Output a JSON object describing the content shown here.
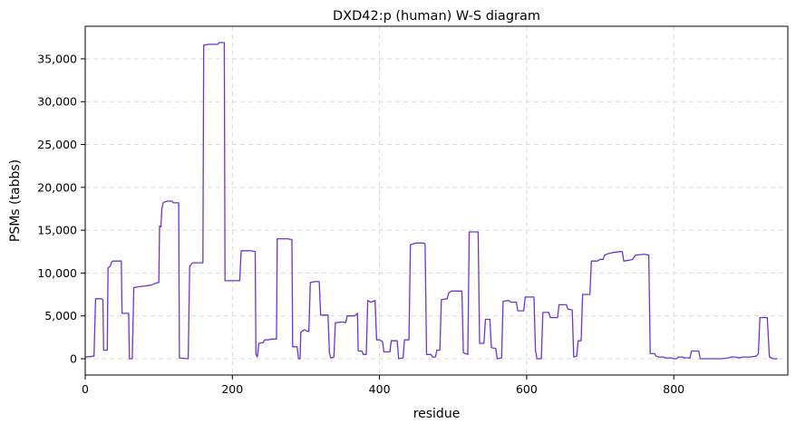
{
  "chart_data": {
    "type": "line",
    "title": "DXD42:p (human) W-S diagram",
    "xlabel": "residue",
    "ylabel": "PSMs (tabbs)",
    "xlim": [
      0,
      955
    ],
    "ylim": [
      -1900,
      38800
    ],
    "x_ticks": [
      0,
      200,
      400,
      600,
      800
    ],
    "x_tick_labels": [
      "0",
      "200",
      "400",
      "600",
      "800"
    ],
    "y_ticks": [
      0,
      5000,
      10000,
      15000,
      20000,
      25000,
      30000,
      35000
    ],
    "y_tick_labels": [
      "0",
      "5,000",
      "10,000",
      "15,000",
      "20,000",
      "25,000",
      "30,000",
      "35,000"
    ],
    "grid": true,
    "legend": "none",
    "series": [
      {
        "color": "#6a35d9",
        "points": [
          [
            0,
            200
          ],
          [
            12,
            300
          ],
          [
            14,
            7000
          ],
          [
            22,
            7000
          ],
          [
            24,
            6900
          ],
          [
            25,
            1000
          ],
          [
            30,
            1000
          ],
          [
            31,
            10600
          ],
          [
            34,
            10800
          ],
          [
            36,
            11300
          ],
          [
            38,
            11400
          ],
          [
            49,
            11400
          ],
          [
            50,
            5300
          ],
          [
            59,
            5300
          ],
          [
            60,
            0
          ],
          [
            64,
            0
          ],
          [
            66,
            8300
          ],
          [
            72,
            8400
          ],
          [
            82,
            8500
          ],
          [
            90,
            8600
          ],
          [
            95,
            8800
          ],
          [
            100,
            8900
          ],
          [
            101,
            15500
          ],
          [
            103,
            15400
          ],
          [
            104,
            17400
          ],
          [
            106,
            18200
          ],
          [
            108,
            18300
          ],
          [
            112,
            18400
          ],
          [
            118,
            18400
          ],
          [
            120,
            18200
          ],
          [
            127,
            18200
          ],
          [
            128,
            100
          ],
          [
            140,
            0
          ],
          [
            142,
            10800
          ],
          [
            146,
            11200
          ],
          [
            152,
            11200
          ],
          [
            160,
            11200
          ],
          [
            161,
            36600
          ],
          [
            168,
            36700
          ],
          [
            180,
            36700
          ],
          [
            182,
            36900
          ],
          [
            189,
            36900
          ],
          [
            190,
            9100
          ],
          [
            200,
            9100
          ],
          [
            210,
            9100
          ],
          [
            212,
            12600
          ],
          [
            225,
            12600
          ],
          [
            231,
            12500
          ],
          [
            232,
            500
          ],
          [
            234,
            200
          ],
          [
            236,
            1800
          ],
          [
            242,
            1900
          ],
          [
            244,
            2200
          ],
          [
            248,
            2200
          ],
          [
            254,
            2300
          ],
          [
            260,
            2300
          ],
          [
            261,
            14000
          ],
          [
            275,
            14000
          ],
          [
            281,
            13900
          ],
          [
            282,
            1400
          ],
          [
            288,
            1400
          ],
          [
            290,
            0
          ],
          [
            292,
            0
          ],
          [
            293,
            3100
          ],
          [
            298,
            3400
          ],
          [
            302,
            3200
          ],
          [
            304,
            3200
          ],
          [
            306,
            8900
          ],
          [
            312,
            9000
          ],
          [
            318,
            9000
          ],
          [
            320,
            5100
          ],
          [
            330,
            5100
          ],
          [
            332,
            600
          ],
          [
            334,
            100
          ],
          [
            338,
            200
          ],
          [
            340,
            4200
          ],
          [
            350,
            4300
          ],
          [
            354,
            4200
          ],
          [
            356,
            5000
          ],
          [
            366,
            5000
          ],
          [
            370,
            5300
          ],
          [
            371,
            900
          ],
          [
            376,
            900
          ],
          [
            378,
            500
          ],
          [
            382,
            500
          ],
          [
            384,
            6800
          ],
          [
            388,
            6600
          ],
          [
            394,
            6800
          ],
          [
            396,
            2200
          ],
          [
            400,
            2200
          ],
          [
            404,
            2000
          ],
          [
            406,
            800
          ],
          [
            414,
            800
          ],
          [
            416,
            2100
          ],
          [
            424,
            2100
          ],
          [
            426,
            0
          ],
          [
            432,
            100
          ],
          [
            434,
            2200
          ],
          [
            440,
            2200
          ],
          [
            442,
            13300
          ],
          [
            450,
            13500
          ],
          [
            460,
            13500
          ],
          [
            462,
            13400
          ],
          [
            464,
            500
          ],
          [
            470,
            500
          ],
          [
            472,
            200
          ],
          [
            476,
            200
          ],
          [
            478,
            1000
          ],
          [
            482,
            1000
          ],
          [
            484,
            6900
          ],
          [
            492,
            7000
          ],
          [
            494,
            7700
          ],
          [
            498,
            7900
          ],
          [
            512,
            7900
          ],
          [
            514,
            700
          ],
          [
            520,
            500
          ],
          [
            522,
            14800
          ],
          [
            534,
            14800
          ],
          [
            536,
            1800
          ],
          [
            542,
            1800
          ],
          [
            544,
            4600
          ],
          [
            550,
            4600
          ],
          [
            552,
            1300
          ],
          [
            558,
            1200
          ],
          [
            560,
            0
          ],
          [
            566,
            100
          ],
          [
            568,
            6700
          ],
          [
            576,
            6800
          ],
          [
            578,
            6600
          ],
          [
            586,
            6600
          ],
          [
            588,
            5600
          ],
          [
            596,
            5600
          ],
          [
            598,
            7200
          ],
          [
            610,
            7200
          ],
          [
            612,
            1000
          ],
          [
            614,
            0
          ],
          [
            620,
            0
          ],
          [
            622,
            5400
          ],
          [
            630,
            5400
          ],
          [
            632,
            4800
          ],
          [
            642,
            4800
          ],
          [
            644,
            6300
          ],
          [
            654,
            6300
          ],
          [
            656,
            5800
          ],
          [
            662,
            5700
          ],
          [
            664,
            200
          ],
          [
            668,
            300
          ],
          [
            670,
            2100
          ],
          [
            674,
            2100
          ],
          [
            676,
            7500
          ],
          [
            686,
            7500
          ],
          [
            688,
            11400
          ],
          [
            696,
            11400
          ],
          [
            700,
            11600
          ],
          [
            704,
            11600
          ],
          [
            706,
            12100
          ],
          [
            712,
            12300
          ],
          [
            718,
            12400
          ],
          [
            726,
            12500
          ],
          [
            730,
            12500
          ],
          [
            732,
            11400
          ],
          [
            740,
            11500
          ],
          [
            744,
            11600
          ],
          [
            748,
            12100
          ],
          [
            760,
            12200
          ],
          [
            766,
            12100
          ],
          [
            768,
            600
          ],
          [
            774,
            600
          ],
          [
            776,
            300
          ],
          [
            780,
            200
          ],
          [
            786,
            200
          ],
          [
            788,
            100
          ],
          [
            796,
            100
          ],
          [
            800,
            0
          ],
          [
            804,
            0
          ],
          [
            806,
            200
          ],
          [
            812,
            200
          ],
          [
            814,
            100
          ],
          [
            822,
            100
          ],
          [
            824,
            900
          ],
          [
            834,
            900
          ],
          [
            836,
            0
          ],
          [
            848,
            0
          ],
          [
            856,
            0
          ],
          [
            866,
            0
          ],
          [
            874,
            100
          ],
          [
            878,
            200
          ],
          [
            884,
            200
          ],
          [
            888,
            100
          ],
          [
            894,
            200
          ],
          [
            904,
            200
          ],
          [
            912,
            300
          ],
          [
            915,
            600
          ],
          [
            917,
            4800
          ],
          [
            927,
            4800
          ],
          [
            930,
            200
          ],
          [
            935,
            0
          ],
          [
            941,
            0
          ]
        ]
      }
    ]
  }
}
